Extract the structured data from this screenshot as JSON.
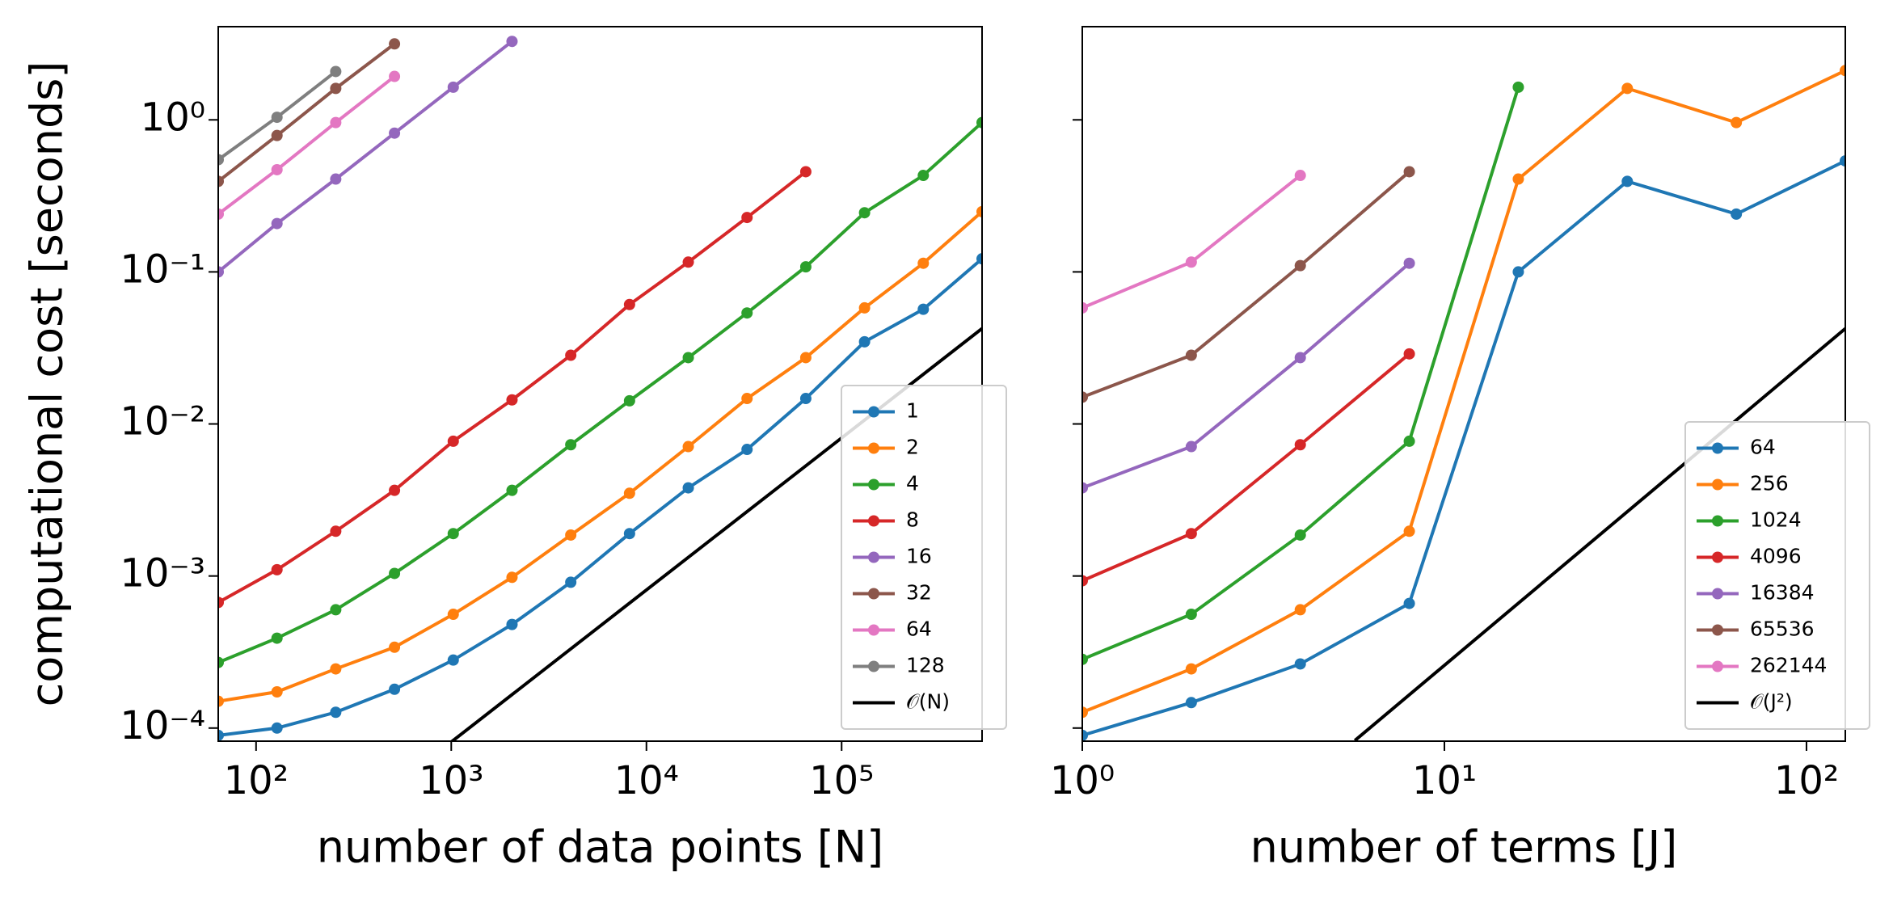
{
  "chart_data": [
    {
      "type": "line",
      "xlog": true,
      "ylog": true,
      "xlabel": "number of data points [N]",
      "ylabel": "computational cost [seconds]",
      "xlim": [
        64,
        524288
      ],
      "ylim": [
        8.2e-05,
        4.1
      ],
      "xticks": [
        {
          "value": 100,
          "label": "10²"
        },
        {
          "value": 1000,
          "label": "10³"
        },
        {
          "value": 10000,
          "label": "10⁴"
        },
        {
          "value": 100000,
          "label": "10⁵"
        }
      ],
      "yticks": [
        {
          "value": 0.0001,
          "label": "10⁻⁴"
        },
        {
          "value": 0.001,
          "label": "10⁻³"
        },
        {
          "value": 0.01,
          "label": "10⁻²"
        },
        {
          "value": 0.1,
          "label": "10⁻¹"
        },
        {
          "value": 1,
          "label": "10⁰"
        }
      ],
      "legend": "lower right",
      "series": [
        {
          "name": "1",
          "color": "#1f77b4",
          "marker": true,
          "x": [
            64,
            128,
            256,
            512,
            1024,
            2048,
            4096,
            8192,
            16384,
            32768,
            65536,
            131072,
            262144,
            524288
          ],
          "values": [
            8.95e-05,
            0.0001,
            0.000127,
            0.00018,
            0.00028,
            0.00048,
            0.00091,
            0.0019,
            0.0038,
            0.0068,
            0.0147,
            0.0347,
            0.0568,
            0.122
          ]
        },
        {
          "name": "2",
          "color": "#ff7f0e",
          "marker": true,
          "x": [
            64,
            128,
            256,
            512,
            1024,
            2048,
            4096,
            8192,
            16384,
            32768,
            65536,
            131072,
            262144,
            524288
          ],
          "values": [
            0.00015,
            0.000173,
            0.000245,
            0.00034,
            0.00056,
            0.00098,
            0.00186,
            0.0035,
            0.0071,
            0.0147,
            0.0273,
            0.058,
            0.114,
            0.249
          ]
        },
        {
          "name": "4",
          "color": "#2ca02c",
          "marker": true,
          "x": [
            64,
            128,
            256,
            512,
            1024,
            2048,
            4096,
            8192,
            16384,
            32768,
            65536,
            131072,
            262144,
            524288
          ],
          "values": [
            0.00027,
            0.00039,
            0.0006,
            0.00104,
            0.0019,
            0.00366,
            0.0073,
            0.0142,
            0.0273,
            0.0537,
            0.108,
            0.245,
            0.431,
            0.96
          ]
        },
        {
          "name": "8",
          "color": "#d62728",
          "marker": true,
          "x": [
            64,
            128,
            256,
            512,
            1024,
            2048,
            4096,
            8192,
            16384,
            32768,
            65536
          ],
          "values": [
            0.00067,
            0.0011,
            0.00197,
            0.00366,
            0.0077,
            0.0144,
            0.0283,
            0.061,
            0.116,
            0.228,
            0.456
          ]
        },
        {
          "name": "16",
          "color": "#9467bd",
          "marker": true,
          "x": [
            64,
            128,
            256,
            512,
            1024,
            2048
          ],
          "values": [
            0.1,
            0.208,
            0.408,
            0.818,
            1.64,
            3.28
          ]
        },
        {
          "name": "32",
          "color": "#8c564b",
          "marker": true,
          "x": [
            64,
            128,
            256,
            512
          ],
          "values": [
            0.394,
            0.789,
            1.61,
            3.16
          ]
        },
        {
          "name": "64",
          "color": "#e377c2",
          "marker": true,
          "x": [
            64,
            128,
            256,
            512
          ],
          "values": [
            0.24,
            0.47,
            0.96,
            1.93
          ]
        },
        {
          "name": "128",
          "color": "#7f7f7f",
          "marker": true,
          "x": [
            64,
            128,
            256
          ],
          "values": [
            0.547,
            1.04,
            2.08
          ]
        },
        {
          "name": "𝒪(N)",
          "color": "#000000",
          "marker": false,
          "x": [
            1000,
            524288
          ],
          "values": [
            8.1e-05,
            0.0424
          ]
        }
      ]
    },
    {
      "type": "line",
      "xlog": true,
      "ylog": true,
      "xlabel": "number of terms [J]",
      "xlim": [
        1,
        128
      ],
      "ylim": [
        8.2e-05,
        4.1
      ],
      "xticks": [
        {
          "value": 1,
          "label": "10⁰"
        },
        {
          "value": 10,
          "label": "10¹"
        },
        {
          "value": 100,
          "label": "10²"
        }
      ],
      "yticks": [
        0.0001,
        0.001,
        0.01,
        0.1,
        1
      ],
      "legend": "lower right",
      "series": [
        {
          "name": "64",
          "color": "#1f77b4",
          "marker": true,
          "x": [
            1,
            2,
            4,
            8,
            16,
            32,
            64,
            128
          ],
          "values": [
            8.95e-05,
            0.000147,
            0.000264,
            0.00066,
            0.1,
            0.394,
            0.24,
            0.537
          ]
        },
        {
          "name": "256",
          "color": "#ff7f0e",
          "marker": true,
          "x": [
            1,
            2,
            4,
            8,
            16,
            32,
            64,
            128
          ],
          "values": [
            0.000127,
            0.000245,
            0.0006,
            0.00197,
            0.408,
            1.61,
            0.96,
            2.11
          ]
        },
        {
          "name": "1024",
          "color": "#2ca02c",
          "marker": true,
          "x": [
            1,
            2,
            4,
            8,
            16
          ],
          "values": [
            0.000283,
            0.00056,
            0.00186,
            0.0077,
            1.64
          ]
        },
        {
          "name": "4096",
          "color": "#d62728",
          "marker": true,
          "x": [
            1,
            2,
            4,
            8
          ],
          "values": [
            0.00093,
            0.0019,
            0.0073,
            0.0289
          ]
        },
        {
          "name": "16384",
          "color": "#9467bd",
          "marker": true,
          "x": [
            1,
            2,
            4,
            8
          ],
          "values": [
            0.0038,
            0.0071,
            0.0273,
            0.114
          ]
        },
        {
          "name": "65536",
          "color": "#8c564b",
          "marker": true,
          "x": [
            1,
            2,
            4,
            8
          ],
          "values": [
            0.015,
            0.0283,
            0.11,
            0.456
          ]
        },
        {
          "name": "262144",
          "color": "#e377c2",
          "marker": true,
          "x": [
            1,
            2,
            4
          ],
          "values": [
            0.058,
            0.116,
            0.431
          ]
        },
        {
          "name": "𝒪(J²)",
          "color": "#000000",
          "marker": false,
          "x": [
            5.66,
            128
          ],
          "values": [
            8.28e-05,
            0.0424
          ]
        }
      ]
    }
  ]
}
